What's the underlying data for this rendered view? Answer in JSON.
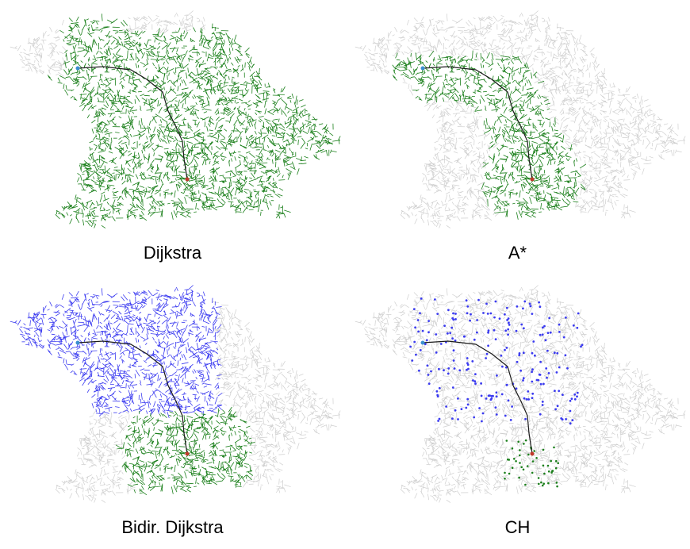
{
  "panels": [
    {
      "id": "dijkstra",
      "caption": "Dijkstra",
      "visited": "all",
      "color": "#1a7f1a"
    },
    {
      "id": "astar",
      "caption": "A*",
      "visited": "corridor",
      "color": "#1a7f1a"
    },
    {
      "id": "bidir",
      "caption": "Bidir. Dijkstra",
      "visited": "bidirectional",
      "color_forward": "#3b3bf0",
      "color_backward": "#1a7f1a"
    },
    {
      "id": "ch",
      "caption": "CH",
      "visited": "sparse",
      "color_forward": "#3b3bf0",
      "color_backward": "#1a7f1a"
    }
  ],
  "colors": {
    "road_network": "#cfcfcf",
    "route": "#1a1a1a",
    "source": "#3a8fd0",
    "target": "#c0392b"
  }
}
